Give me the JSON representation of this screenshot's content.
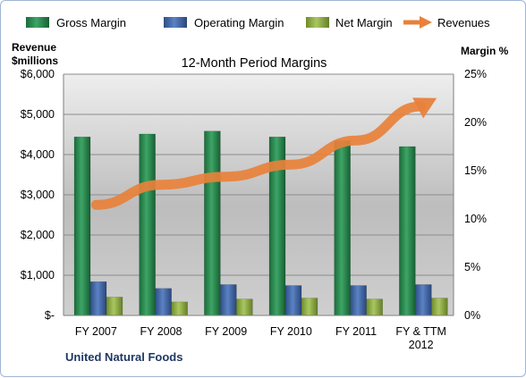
{
  "chart_data": {
    "type": "bar",
    "title": "12-Month Period Margins",
    "footer": "United Natural Foods",
    "categories": [
      [
        "FY 2007"
      ],
      [
        "FY 2008"
      ],
      [
        "FY 2009"
      ],
      [
        "FY 2010"
      ],
      [
        "FY 2011"
      ],
      [
        "FY & TTM",
        "2012"
      ]
    ],
    "y_left_title_lines": [
      "Revenue",
      "$millions"
    ],
    "y_right_title": "Margin %",
    "y_left_ticks": [
      "$-",
      "$1,000",
      "$2,000",
      "$3,000",
      "$4,000",
      "$5,000",
      "$6,000"
    ],
    "y_right_ticks": [
      "0%",
      "5%",
      "10%",
      "15%",
      "20%",
      "25%"
    ],
    "y_left_range": [
      0,
      6000
    ],
    "y_right_range": [
      0,
      25
    ],
    "grid": true,
    "legend_position": "top",
    "series": [
      {
        "name": "Gross Margin",
        "axis": "right",
        "values": [
          18.5,
          18.8,
          19.1,
          18.5,
          18.1,
          17.5
        ]
      },
      {
        "name": "Operating Margin",
        "axis": "right",
        "values": [
          3.5,
          2.8,
          3.2,
          3.1,
          3.1,
          3.2
        ]
      },
      {
        "name": "Net Margin",
        "axis": "right",
        "values": [
          1.9,
          1.4,
          1.7,
          1.8,
          1.7,
          1.8
        ]
      }
    ],
    "line_series": {
      "name": "Revenues",
      "axis": "left",
      "values": [
        2750,
        3250,
        3450,
        3750,
        4350,
        5200
      ]
    },
    "colors": {
      "gross": "#2e8b57",
      "operating": "#4f72b0",
      "net": "#93b551",
      "revenues": "#e8813b"
    }
  }
}
